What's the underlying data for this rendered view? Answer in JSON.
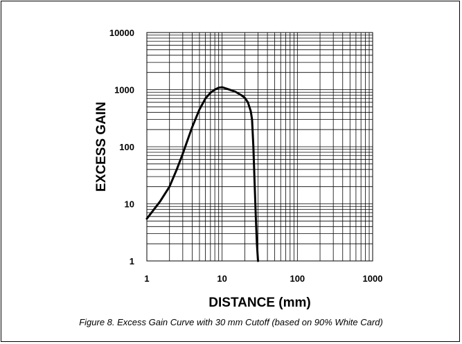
{
  "caption": "Figure 8. Excess Gain Curve with 30 mm Cutoff (based on 90% White Card)",
  "chart_data": {
    "type": "line",
    "title": "",
    "xlabel": "DISTANCE (mm)",
    "ylabel": "EXCESS GAIN",
    "xscale": "log",
    "yscale": "log",
    "xlim": [
      1,
      1000
    ],
    "ylim": [
      1,
      10000
    ],
    "xticks": [
      "1",
      "10",
      "100",
      "1000"
    ],
    "yticks": [
      "1",
      "10",
      "100",
      "1000",
      "10000"
    ],
    "grid": true,
    "legend": "none",
    "series": [
      {
        "x": [
          1,
          1.5,
          2,
          2.5,
          3,
          4,
          5,
          6,
          7,
          8,
          9,
          10,
          12,
          15,
          18,
          20,
          22,
          24,
          25,
          26,
          27,
          28,
          29,
          30
        ],
        "y": [
          5.5,
          11,
          20,
          40,
          75,
          220,
          450,
          700,
          880,
          1000,
          1080,
          1100,
          1020,
          920,
          800,
          720,
          600,
          420,
          300,
          100,
          25,
          6,
          2,
          1
        ]
      }
    ],
    "colors": {
      "line": "#000000",
      "grid": "#000000"
    }
  }
}
